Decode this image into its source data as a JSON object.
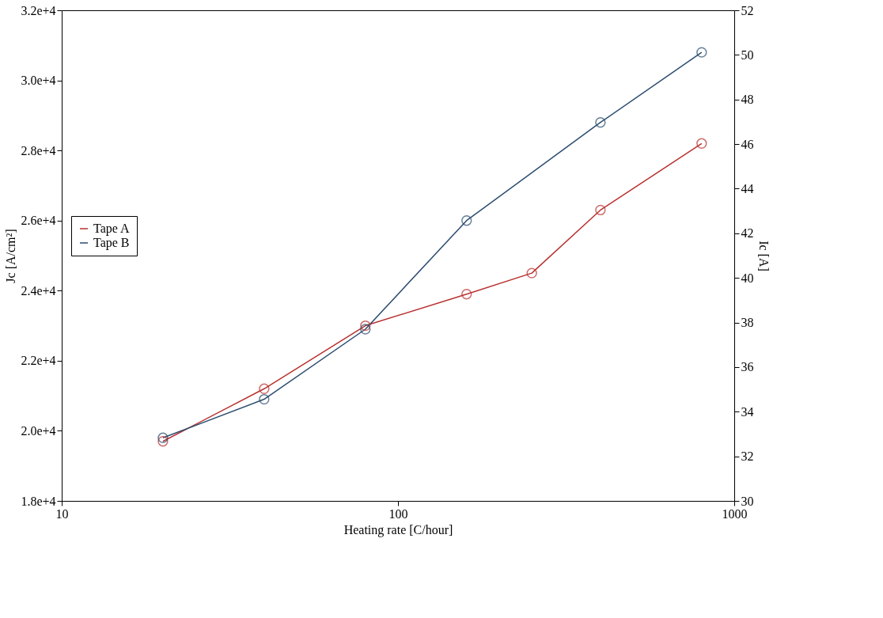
{
  "chart_data": {
    "type": "line",
    "xlabel": "Heating rate [C/hour]",
    "ylabel": "Jc [A/cm²]",
    "y2label": "Ic [A]",
    "x": [
      20,
      40,
      80,
      160,
      250,
      400,
      800
    ],
    "series": [
      {
        "name": "Tape A",
        "color": "#b8312f",
        "values": [
          19700,
          21200,
          23000,
          23900,
          24500,
          26300,
          28200
        ]
      },
      {
        "name": "Tape B",
        "color": "#2a4b6e",
        "x": [
          20,
          40,
          80,
          160,
          400,
          800
        ],
        "values": [
          19800,
          20900,
          22900,
          26000,
          28800,
          30800
        ]
      }
    ],
    "log": "x",
    "xlim": [
      10,
      1000
    ],
    "xticks": [
      10,
      100,
      {
        "value": 1000,
        "label": "1000"
      }
    ],
    "ylim": [
      18000,
      32000
    ],
    "yticks": [
      {
        "value": 18000,
        "label": "1.8e+4"
      },
      {
        "value": 20000,
        "label": "2.0e+4"
      },
      {
        "value": 22000,
        "label": "2.2e+4"
      },
      {
        "value": 24000,
        "label": "2.4e+4"
      },
      {
        "value": 26000,
        "label": "2.6e+4"
      },
      {
        "value": 28000,
        "label": "2.8e+4"
      },
      {
        "value": 30000,
        "label": "3.0e+4"
      },
      {
        "value": 32000,
        "label": "3.2e+4"
      }
    ],
    "y2lim": [
      30,
      52
    ],
    "y2ticks": [
      30,
      32,
      34,
      36,
      38,
      40,
      42,
      44,
      46,
      48,
      50,
      52
    ],
    "legend": "left",
    "marker": "circle",
    "line_style": "solid",
    "grid": false
  }
}
